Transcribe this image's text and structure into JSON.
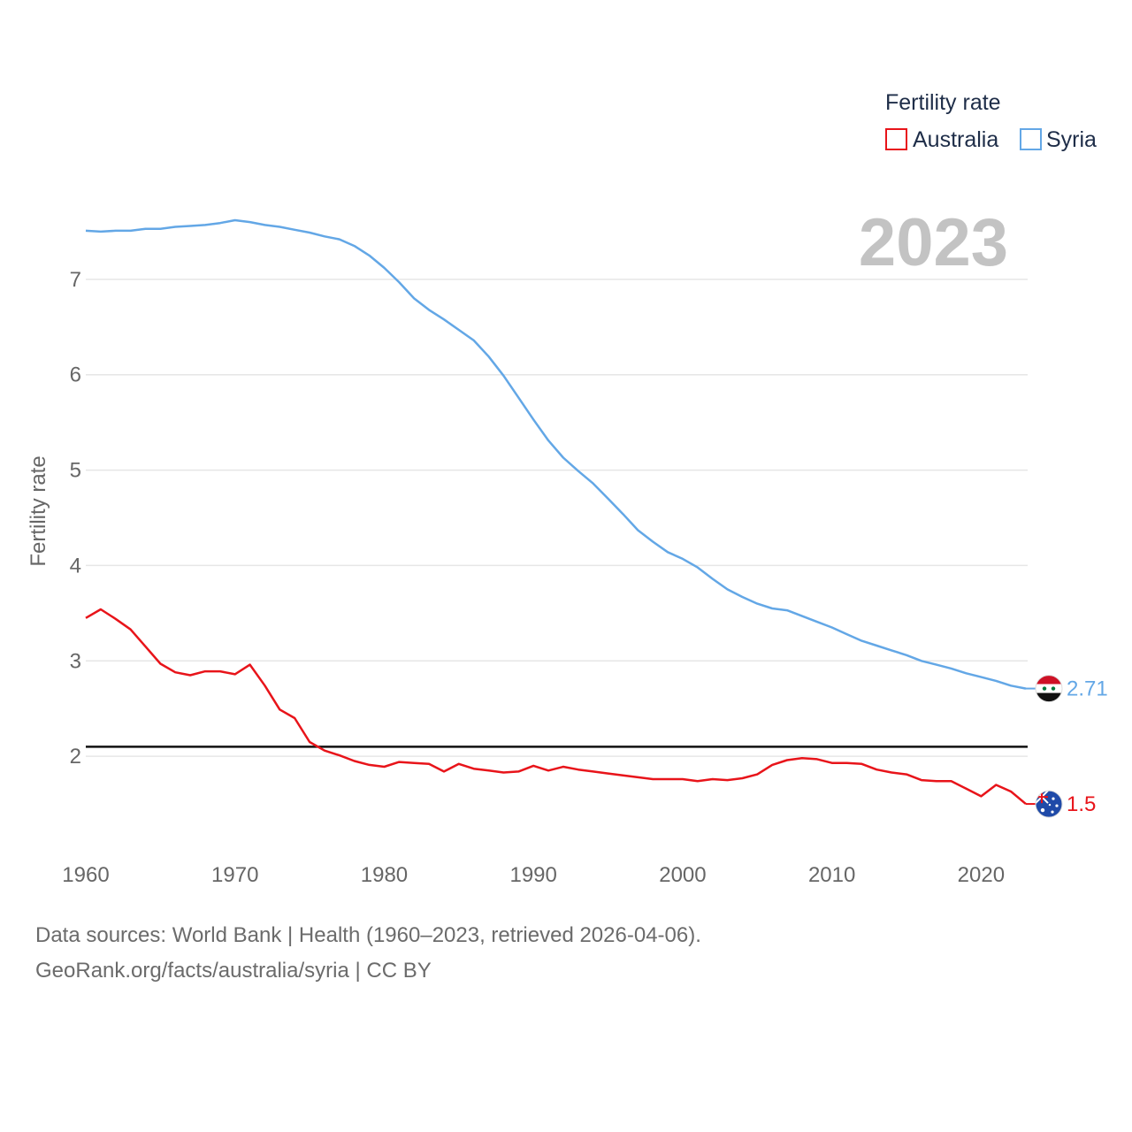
{
  "chart_data": {
    "type": "line",
    "title": "",
    "current_year": "2023",
    "xlabel": "",
    "ylabel": "Fertility rate",
    "xlim": [
      1960,
      2023
    ],
    "ylim": [
      1.0,
      8.0
    ],
    "x_ticks": [
      1960,
      1970,
      1980,
      1990,
      2000,
      2010,
      2020
    ],
    "y_ticks": [
      2,
      3,
      4,
      5,
      6,
      7
    ],
    "reference_line": 2.1,
    "legend": {
      "title": "Fertility rate",
      "position": "top-right"
    },
    "x": [
      1960,
      1961,
      1962,
      1963,
      1964,
      1965,
      1966,
      1967,
      1968,
      1969,
      1970,
      1971,
      1972,
      1973,
      1974,
      1975,
      1976,
      1977,
      1978,
      1979,
      1980,
      1981,
      1982,
      1983,
      1984,
      1985,
      1986,
      1987,
      1988,
      1989,
      1990,
      1991,
      1992,
      1993,
      1994,
      1995,
      1996,
      1997,
      1998,
      1999,
      2000,
      2001,
      2002,
      2003,
      2004,
      2005,
      2006,
      2007,
      2008,
      2009,
      2010,
      2011,
      2012,
      2013,
      2014,
      2015,
      2016,
      2017,
      2018,
      2019,
      2020,
      2021,
      2022,
      2023
    ],
    "series": [
      {
        "name": "Australia",
        "color": "#e8141a",
        "end_label": "1.5",
        "values": [
          3.45,
          3.54,
          3.44,
          3.33,
          3.15,
          2.97,
          2.88,
          2.85,
          2.89,
          2.89,
          2.86,
          2.96,
          2.74,
          2.49,
          2.4,
          2.15,
          2.06,
          2.01,
          1.95,
          1.91,
          1.89,
          1.94,
          1.93,
          1.92,
          1.84,
          1.92,
          1.87,
          1.85,
          1.83,
          1.84,
          1.9,
          1.85,
          1.89,
          1.86,
          1.84,
          1.82,
          1.8,
          1.78,
          1.76,
          1.76,
          1.76,
          1.74,
          1.76,
          1.75,
          1.77,
          1.81,
          1.91,
          1.96,
          1.98,
          1.97,
          1.93,
          1.93,
          1.92,
          1.86,
          1.83,
          1.81,
          1.75,
          1.74,
          1.74,
          1.66,
          1.58,
          1.7,
          1.63,
          1.5
        ]
      },
      {
        "name": "Syria",
        "color": "#63a7e6",
        "end_label": "2.71",
        "values": [
          7.51,
          7.5,
          7.51,
          7.51,
          7.53,
          7.53,
          7.55,
          7.56,
          7.57,
          7.59,
          7.62,
          7.6,
          7.57,
          7.55,
          7.52,
          7.49,
          7.45,
          7.42,
          7.35,
          7.25,
          7.12,
          6.97,
          6.8,
          6.68,
          6.58,
          6.47,
          6.36,
          6.19,
          5.99,
          5.76,
          5.53,
          5.31,
          5.13,
          4.99,
          4.86,
          4.7,
          4.54,
          4.37,
          4.25,
          4.14,
          4.07,
          3.98,
          3.86,
          3.75,
          3.67,
          3.6,
          3.55,
          3.53,
          3.47,
          3.41,
          3.35,
          3.28,
          3.21,
          3.16,
          3.11,
          3.06,
          3.0,
          2.96,
          2.92,
          2.87,
          2.83,
          2.79,
          2.74,
          2.71
        ]
      }
    ]
  },
  "source": {
    "line1": "Data sources: World Bank | Health (1960–2023, retrieved 2026-04-06).",
    "line2": "GeoRank.org/facts/australia/syria | CC BY"
  }
}
